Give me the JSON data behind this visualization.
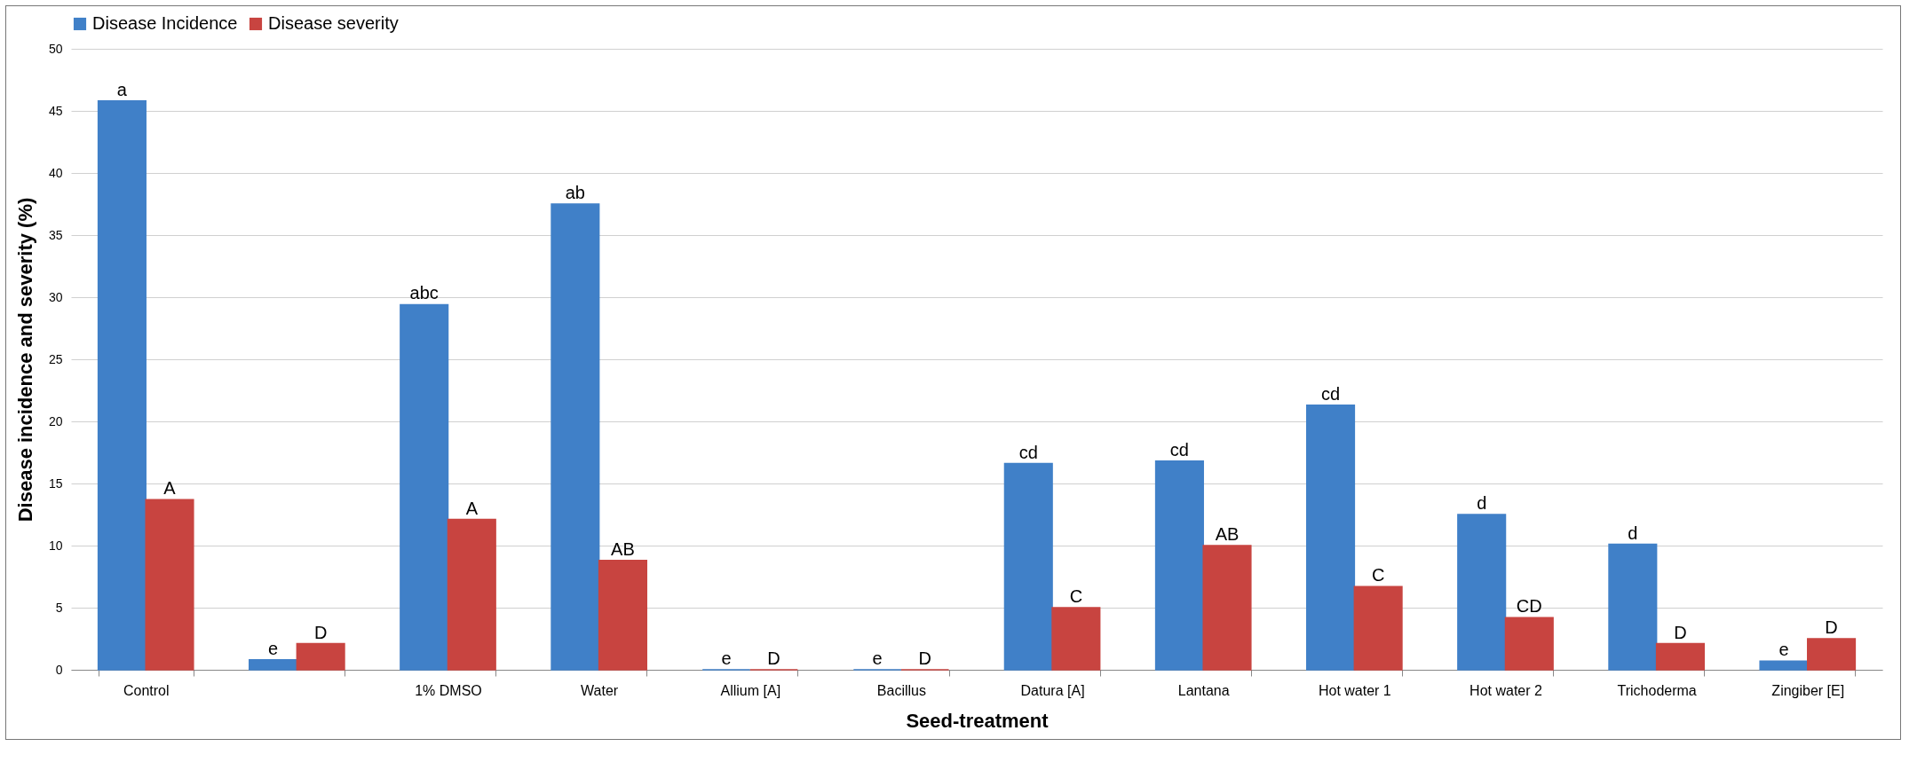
{
  "chart_data": {
    "type": "bar",
    "xlabel": "Seed-treatment",
    "ylabel": "Disease incidence and severity (%)",
    "categories": [
      "Control",
      null,
      "1% DMSO",
      "Water",
      "Allium [A]",
      "Bacillus",
      "Datura [A]",
      "Lantana",
      "Hot water 1",
      "Hot water 2",
      "Trichoderma",
      "Zingiber [E]"
    ],
    "series": [
      {
        "name": "Disease Incidence",
        "color": "#4080c8",
        "values": [
          45.8,
          0.8,
          29.4,
          37.5,
          0,
          0,
          16.6,
          16.8,
          21.3,
          12.5,
          10.1,
          0.7
        ],
        "value_labels": [
          "a",
          "e",
          "abc",
          "ab",
          "e",
          "e",
          "cd",
          "cd",
          "cd",
          "d",
          "d",
          "e"
        ]
      },
      {
        "name": "Disease severity",
        "color": "#c84440",
        "values": [
          13.7,
          2.1,
          12.1,
          8.8,
          0,
          0,
          5.0,
          10.0,
          6.7,
          4.2,
          2.1,
          2.5
        ],
        "value_labels": [
          "A",
          "D",
          "A",
          "AB",
          "D",
          "D",
          "C",
          "AB",
          "C",
          "CD",
          "D",
          "D"
        ]
      }
    ],
    "ylim": [
      0,
      50
    ],
    "yticks": [
      0,
      5,
      10,
      15,
      20,
      25,
      30,
      35,
      40,
      45,
      50
    ],
    "grid": "y",
    "legend": "top"
  }
}
